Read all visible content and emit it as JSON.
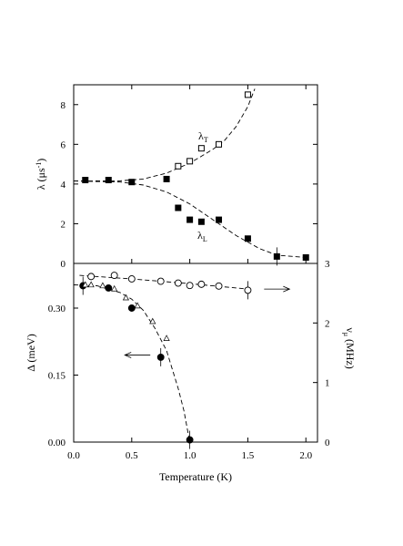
{
  "chart_data": [
    {
      "type": "scatter",
      "panel": "top",
      "ylabel": "λ (μs⁻¹)",
      "ylabel_parts": {
        "main": "λ (μs",
        "sup": "-1",
        "close": ")"
      },
      "xlim": [
        0,
        2.1
      ],
      "ylim": [
        0,
        9
      ],
      "x_ticks": [
        0.0,
        0.5,
        1.0,
        1.5,
        2.0
      ],
      "y_ticks": [
        0,
        2,
        4,
        6,
        8
      ],
      "y_tick_labels": [
        "0",
        "2",
        "4",
        "6",
        "8"
      ],
      "grid": false,
      "series": [
        {
          "name": "λT",
          "label": {
            "main": "λ",
            "sub": "T"
          },
          "marker": "open-square",
          "points": [
            {
              "x": 0.9,
              "y": 4.9
            },
            {
              "x": 1.0,
              "y": 5.15
            },
            {
              "x": 1.1,
              "y": 5.8
            },
            {
              "x": 1.25,
              "y": 6.0
            },
            {
              "x": 1.5,
              "y": 8.5
            }
          ],
          "fit": [
            [
              0.0,
              4.15
            ],
            [
              0.4,
              4.16
            ],
            [
              0.6,
              4.25
            ],
            [
              0.8,
              4.55
            ],
            [
              1.0,
              5.05
            ],
            [
              1.2,
              5.75
            ],
            [
              1.3,
              6.2
            ],
            [
              1.4,
              6.9
            ],
            [
              1.5,
              7.9
            ],
            [
              1.56,
              8.8
            ]
          ]
        },
        {
          "name": "λL",
          "label": {
            "main": "λ",
            "sub": "L"
          },
          "marker": "filled-square",
          "points": [
            {
              "x": 0.1,
              "y": 4.2
            },
            {
              "x": 0.3,
              "y": 4.2
            },
            {
              "x": 0.5,
              "y": 4.1
            },
            {
              "x": 0.8,
              "y": 4.25
            },
            {
              "x": 0.9,
              "y": 2.8
            },
            {
              "x": 1.0,
              "y": 2.2
            },
            {
              "x": 1.1,
              "y": 2.1
            },
            {
              "x": 1.25,
              "y": 2.2
            },
            {
              "x": 1.5,
              "y": 1.25
            },
            {
              "x": 1.75,
              "y": 0.35
            },
            {
              "x": 2.0,
              "y": 0.3
            }
          ],
          "fit": [
            [
              0.0,
              4.15
            ],
            [
              0.4,
              4.1
            ],
            [
              0.6,
              3.95
            ],
            [
              0.8,
              3.6
            ],
            [
              1.0,
              3.0
            ],
            [
              1.2,
              2.2
            ],
            [
              1.4,
              1.4
            ],
            [
              1.6,
              0.75
            ],
            [
              1.75,
              0.42
            ],
            [
              2.0,
              0.3
            ]
          ]
        }
      ]
    },
    {
      "type": "scatter",
      "panel": "bottom",
      "xlabel": "Temperature (K)",
      "ylabel": "Δ (meV)",
      "ylabel_right": "νμ (MHz)",
      "ylabel_right_parts": {
        "main": "ν",
        "sub": "μ",
        "rest": " (MHz)"
      },
      "xlim": [
        0,
        2.1
      ],
      "ylim": [
        0,
        0.4
      ],
      "ylim_right": [
        0,
        3
      ],
      "x_ticks": [
        0.0,
        0.5,
        1.0,
        1.5,
        2.0
      ],
      "x_tick_labels": [
        "0.0",
        "0.5",
        "1.0",
        "1.5",
        "2.0"
      ],
      "y_ticks": [
        0.0,
        0.15,
        0.3
      ],
      "y_tick_labels": [
        "0.00",
        "0.15",
        "0.30"
      ],
      "y_ticks_right": [
        0,
        1,
        2,
        3
      ],
      "y_tick_labels_right": [
        "0",
        "1",
        "2",
        "3"
      ],
      "grid": false,
      "series": [
        {
          "name": "Δ",
          "marker": "filled-circle",
          "axis": "left",
          "points": [
            {
              "x": 0.08,
              "y": 0.35
            },
            {
              "x": 0.3,
              "y": 0.345
            },
            {
              "x": 0.5,
              "y": 0.3
            },
            {
              "x": 0.75,
              "y": 0.19
            },
            {
              "x": 1.0,
              "y": 0.005
            }
          ],
          "fit": [
            [
              0.0,
              0.352
            ],
            [
              0.2,
              0.35
            ],
            [
              0.4,
              0.335
            ],
            [
              0.5,
              0.32
            ],
            [
              0.6,
              0.295
            ],
            [
              0.7,
              0.255
            ],
            [
              0.8,
              0.205
            ],
            [
              0.9,
              0.12
            ],
            [
              0.95,
              0.07
            ],
            [
              1.0,
              0.0
            ]
          ]
        },
        {
          "name": "triangles",
          "marker": "open-triangle",
          "axis": "left",
          "points": [
            {
              "x": 0.1,
              "y": 0.352
            },
            {
              "x": 0.15,
              "y": 0.352
            },
            {
              "x": 0.25,
              "y": 0.35
            },
            {
              "x": 0.35,
              "y": 0.343
            },
            {
              "x": 0.45,
              "y": 0.323
            },
            {
              "x": 0.55,
              "y": 0.305
            },
            {
              "x": 0.68,
              "y": 0.27
            },
            {
              "x": 0.8,
              "y": 0.232
            }
          ]
        },
        {
          "name": "νμ",
          "marker": "open-circle",
          "axis": "right",
          "points": [
            {
              "x": 0.15,
              "y": 2.78
            },
            {
              "x": 0.35,
              "y": 2.8
            },
            {
              "x": 0.5,
              "y": 2.74
            },
            {
              "x": 0.75,
              "y": 2.7
            },
            {
              "x": 0.9,
              "y": 2.67
            },
            {
              "x": 1.0,
              "y": 2.63
            },
            {
              "x": 1.1,
              "y": 2.65
            },
            {
              "x": 1.25,
              "y": 2.62
            },
            {
              "x": 1.5,
              "y": 2.55
            }
          ],
          "fit": [
            [
              0.05,
              2.8
            ],
            [
              0.5,
              2.74
            ],
            [
              1.0,
              2.66
            ],
            [
              1.5,
              2.57
            ]
          ]
        }
      ],
      "arrows": [
        {
          "points_to": "right-axis",
          "at": {
            "x": 1.75,
            "y_right": 2.57
          }
        },
        {
          "points_to": "left-axis",
          "at": {
            "x": 0.55,
            "y": 0.195
          }
        }
      ]
    }
  ]
}
